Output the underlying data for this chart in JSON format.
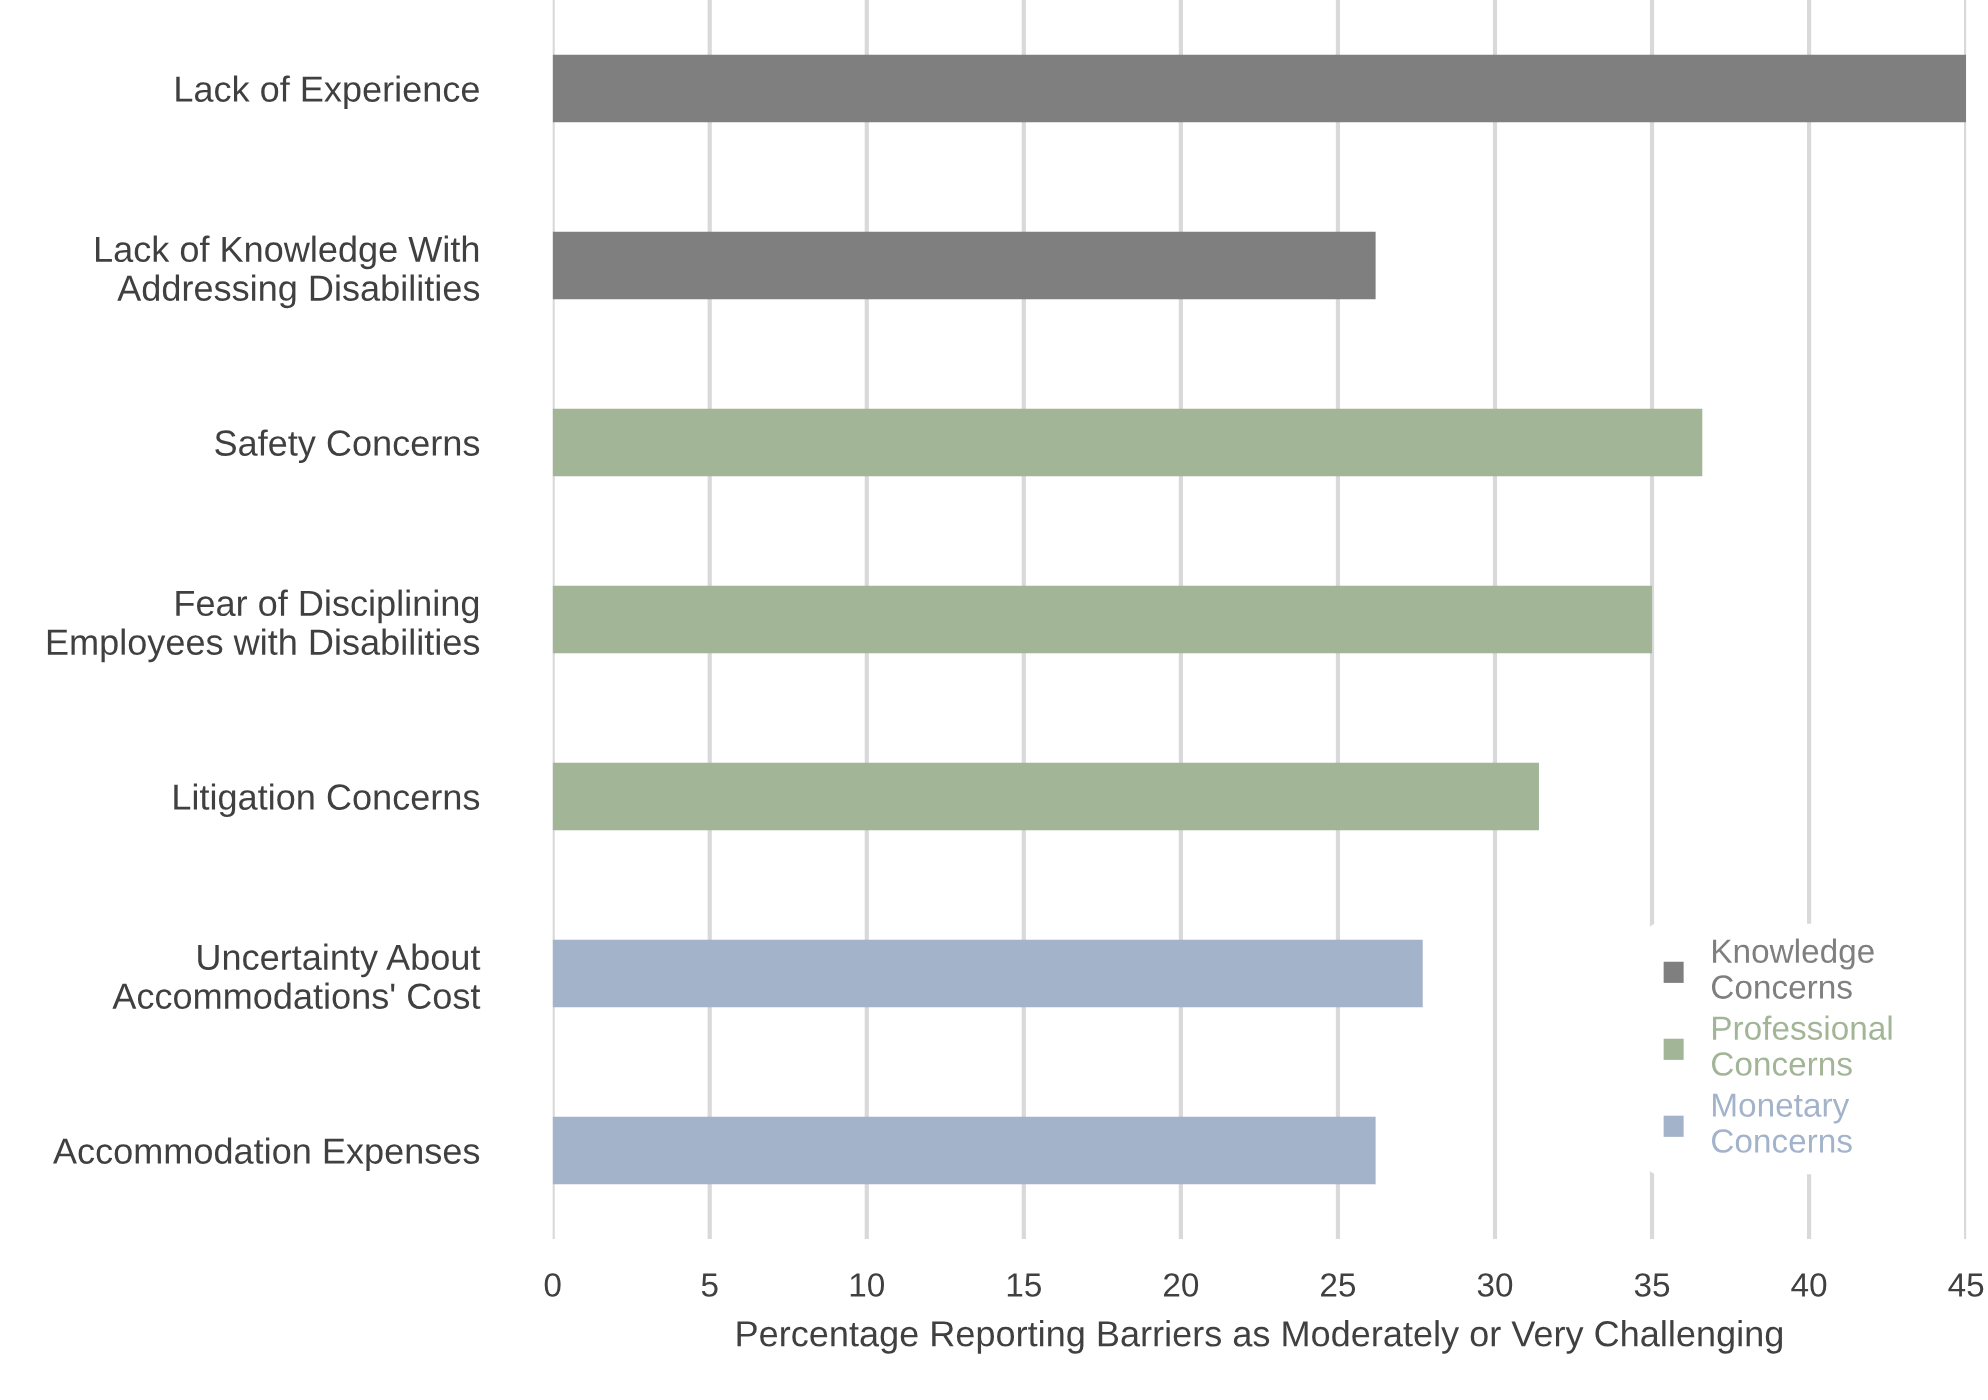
{
  "chart_data": {
    "type": "bar",
    "orientation": "horizontal",
    "categories": [
      "Lack of Experience",
      "Lack of Knowledge With\nAddressing Disabilities",
      "Safety Concerns",
      "Fear of Disciplining\nEmployees with Disabilities",
      "Litigation Concerns",
      "Uncertainty About\nAccommodations' Cost",
      "Accommodation Expenses"
    ],
    "series": [
      {
        "name": "Knowledge\nConcerns",
        "color": "#7f7f7f",
        "values": [
          45,
          26.2,
          null,
          null,
          null,
          null,
          null
        ]
      },
      {
        "name": "Professional\nConcerns",
        "color": "#a2b596",
        "values": [
          null,
          null,
          36.6,
          35.0,
          31.4,
          null,
          null
        ]
      },
      {
        "name": "Monetary\nConcerns",
        "color": "#a3b3c9",
        "values": [
          null,
          null,
          null,
          null,
          null,
          27.7,
          26.2
        ]
      }
    ],
    "xlabel": "Percentage Reporting Barriers as Moderately or Very Challenging",
    "xlim": [
      0,
      45
    ],
    "xticks": [
      0,
      5,
      10,
      15,
      20,
      25,
      30,
      35,
      40,
      45
    ],
    "grid": "x",
    "legend": "bottom right"
  }
}
